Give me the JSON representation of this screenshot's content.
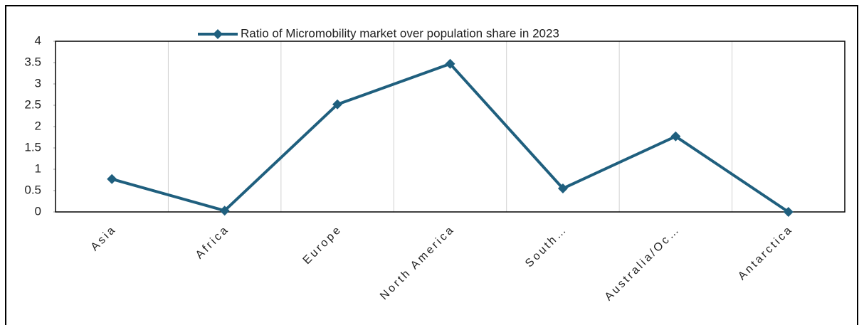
{
  "chart_data": {
    "type": "line",
    "categories": [
      "Asia",
      "Africa",
      "Europe",
      "North America",
      "South…",
      "Australia/Oc…",
      "Antarctica"
    ],
    "series": [
      {
        "name": "Ratio of Micromobility market over population share in 2023",
        "color": "#1f5f7e",
        "values": [
          0.77,
          0.03,
          2.52,
          3.47,
          0.55,
          1.77,
          0
        ]
      }
    ],
    "ylim": [
      0,
      4
    ],
    "yticks": [
      0,
      0.5,
      1,
      1.5,
      2,
      2.5,
      3,
      3.5,
      4
    ],
    "grid": true,
    "legend": "top"
  }
}
